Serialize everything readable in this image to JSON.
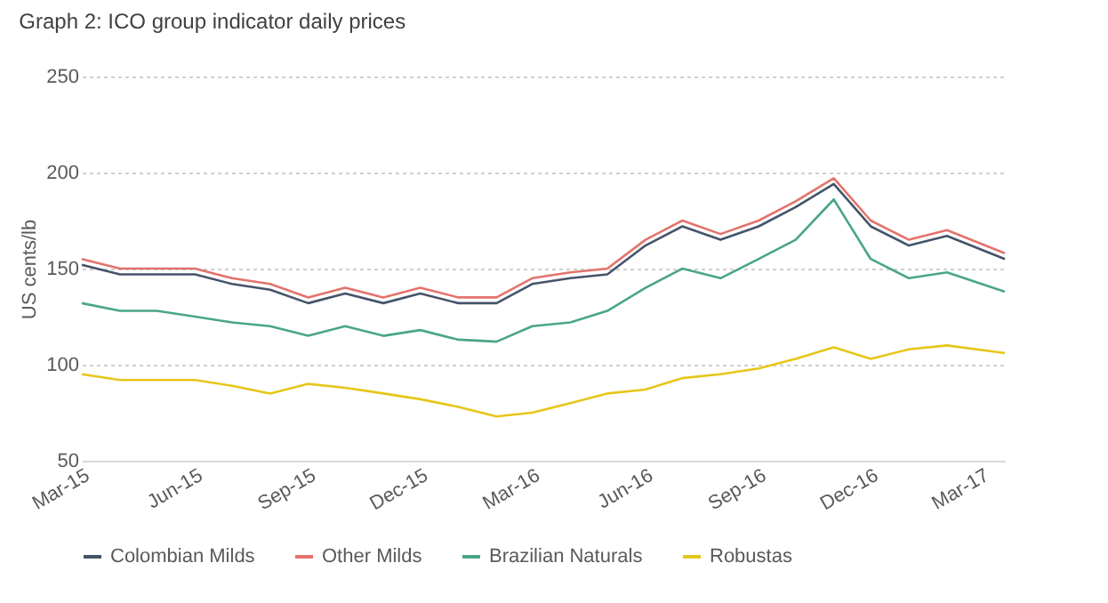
{
  "chart_data": {
    "type": "line",
    "title": "Graph 2: ICO group indicator daily prices",
    "ylabel": "US cents/lb",
    "x": [
      "2015-03-01",
      "2015-04-01",
      "2015-05-01",
      "2015-06-01",
      "2015-07-01",
      "2015-08-01",
      "2015-09-01",
      "2015-10-01",
      "2015-11-01",
      "2015-12-01",
      "2016-01-01",
      "2016-02-01",
      "2016-03-01",
      "2016-04-01",
      "2016-05-01",
      "2016-06-01",
      "2016-07-01",
      "2016-08-01",
      "2016-09-01",
      "2016-10-01",
      "2016-11-01",
      "2016-12-01",
      "2017-01-01",
      "2017-02-01",
      "2017-03-20"
    ],
    "series": [
      {
        "name": "Colombian Milds",
        "color": "#44546a",
        "values": [
          152,
          147,
          147,
          147,
          142,
          139,
          132,
          137,
          132,
          137,
          132,
          132,
          142,
          145,
          147,
          162,
          172,
          165,
          172,
          182,
          194,
          172,
          162,
          167,
          155
        ]
      },
      {
        "name": "Other Milds",
        "color": "#e3736b",
        "values": [
          155,
          150,
          150,
          150,
          145,
          142,
          135,
          140,
          135,
          140,
          135,
          135,
          145,
          148,
          150,
          165,
          175,
          168,
          175,
          185,
          197,
          175,
          165,
          170,
          158
        ]
      },
      {
        "name": "Brazilian Naturals",
        "color": "#4aa58a",
        "values": [
          132,
          128,
          128,
          125,
          122,
          120,
          115,
          120,
          115,
          118,
          113,
          112,
          120,
          122,
          128,
          140,
          150,
          145,
          155,
          165,
          186,
          155,
          145,
          148,
          138
        ]
      },
      {
        "name": "Robustas",
        "color": "#e6c619",
        "values": [
          95,
          92,
          92,
          92,
          89,
          85,
          90,
          88,
          85,
          82,
          78,
          73,
          75,
          80,
          85,
          87,
          93,
          95,
          98,
          103,
          109,
          103,
          108,
          110,
          106
        ]
      }
    ],
    "xlim": [
      "2015-03-01",
      "2017-03-20"
    ],
    "xticks": [
      {
        "value": "2015-03-01",
        "label": "Mar-15"
      },
      {
        "value": "2015-06-01",
        "label": "Jun-15"
      },
      {
        "value": "2015-09-01",
        "label": "Sep-15"
      },
      {
        "value": "2015-12-01",
        "label": "Dec-15"
      },
      {
        "value": "2016-03-01",
        "label": "Mar-16"
      },
      {
        "value": "2016-06-01",
        "label": "Jun-16"
      },
      {
        "value": "2016-09-01",
        "label": "Sep-16"
      },
      {
        "value": "2016-12-01",
        "label": "Dec-16"
      },
      {
        "value": "2017-03-01",
        "label": "Mar-17"
      }
    ],
    "ylim": [
      50,
      250
    ],
    "yticks": [
      50,
      100,
      150,
      200,
      250
    ],
    "grid": "y",
    "legend": "bottom",
    "marker": "none",
    "line_style": "solid"
  }
}
